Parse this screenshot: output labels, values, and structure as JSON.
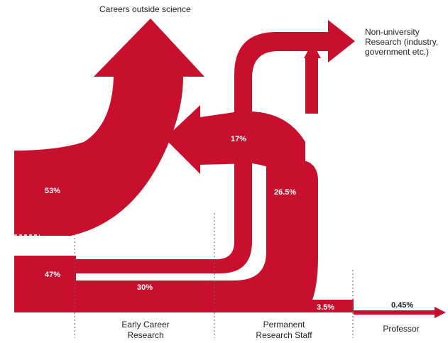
{
  "colors": {
    "flow": "#C8102E",
    "divider": "#666666",
    "text": "#222222"
  },
  "labels": {
    "careers_outside": "Careers outside science",
    "non_university": [
      "Non-university",
      "Research (industry,",
      "government etc.)"
    ]
  },
  "percentages": {
    "leave_early": "53%",
    "stay_early": "47%",
    "to_non_university": "17%",
    "permanent_outside": "26.5%",
    "to_permanent": "30%",
    "permanent_stay": "3.5%",
    "professor": "0.45%"
  },
  "stages": {
    "early_career": [
      "Early Career",
      "Research"
    ],
    "permanent": [
      "Permanent",
      "Research Staff"
    ],
    "professor": "Professor"
  }
}
